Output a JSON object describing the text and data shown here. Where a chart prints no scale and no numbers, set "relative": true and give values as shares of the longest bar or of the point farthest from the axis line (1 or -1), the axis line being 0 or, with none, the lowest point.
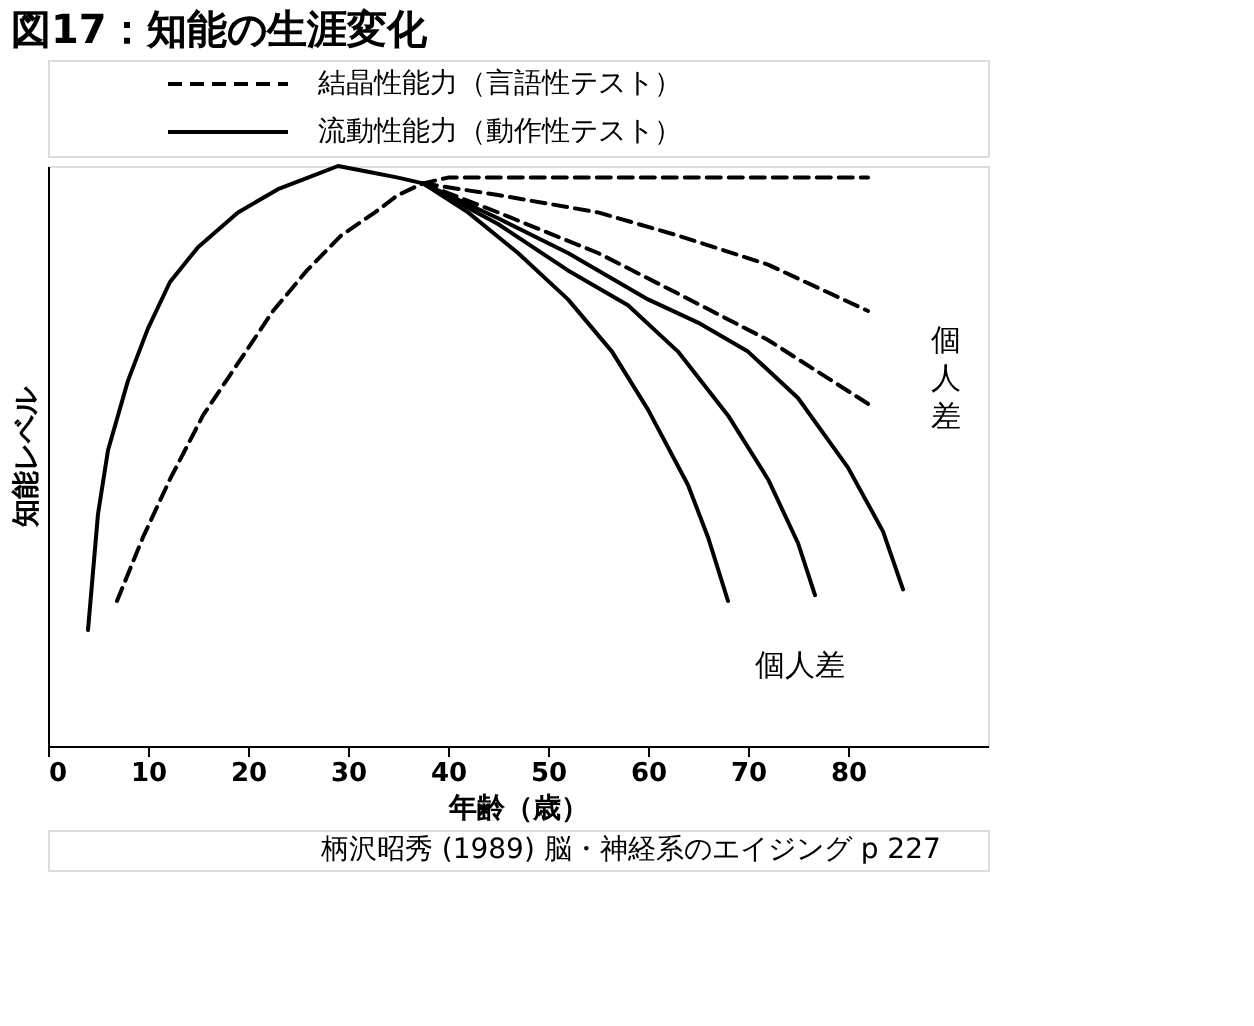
{
  "chart_data": {
    "type": "line",
    "title": "図17：知能の生涯変化",
    "xlabel": "年齢（歳）",
    "ylabel": "知能レベル",
    "relative": true,
    "xlim": [
      0,
      94
    ],
    "xticks": [
      0,
      10,
      20,
      30,
      40,
      50,
      60,
      70,
      80
    ],
    "tick_labels": "x",
    "grid": false,
    "legend": "top",
    "series": [
      {
        "name": "結晶性能力（言語性テスト）",
        "color": "#000000",
        "line_style": "dashed",
        "x": [
          6.9,
          9.5,
          12.2,
          15.5,
          19,
          22.5,
          25.9,
          29.3,
          32.7,
          35,
          37.5,
          40,
          50,
          60,
          70,
          82
        ],
        "values": [
          0.25,
          0.36,
          0.46,
          0.57,
          0.66,
          0.75,
          0.82,
          0.88,
          0.92,
          0.95,
          0.97,
          0.98,
          0.98,
          0.98,
          0.98,
          0.98
        ]
      },
      {
        "color": "#000000",
        "line_style": "dashed",
        "x": [
          37.5,
          45,
          55,
          63,
          72,
          82
        ],
        "values": [
          0.97,
          0.95,
          0.92,
          0.88,
          0.83,
          0.75
        ]
      },
      {
        "color": "#000000",
        "line_style": "dashed",
        "x": [
          37.5,
          45,
          55,
          63,
          72,
          82
        ],
        "values": [
          0.97,
          0.92,
          0.85,
          0.78,
          0.7,
          0.59
        ]
      },
      {
        "name": "流動性能力（動作性テスト）",
        "color": "#000000",
        "line_style": "solid",
        "x": [
          4,
          4.5,
          5,
          6,
          8,
          10,
          12.2,
          15,
          19,
          23,
          26,
          29,
          32,
          35,
          37.5,
          42,
          47,
          52,
          56.4,
          60,
          64,
          66,
          68
        ],
        "values": [
          0.2,
          0.3,
          0.4,
          0.51,
          0.63,
          0.72,
          0.8,
          0.86,
          0.92,
          0.96,
          0.98,
          1.0,
          0.99,
          0.98,
          0.97,
          0.92,
          0.85,
          0.77,
          0.68,
          0.58,
          0.45,
          0.36,
          0.25
        ]
      },
      {
        "color": "#000000",
        "line_style": "solid",
        "x": [
          37.5,
          45,
          52,
          58,
          63,
          68,
          72,
          75,
          76.7
        ],
        "values": [
          0.97,
          0.9,
          0.82,
          0.76,
          0.68,
          0.57,
          0.46,
          0.35,
          0.26
        ]
      },
      {
        "color": "#000000",
        "line_style": "solid",
        "x": [
          37.5,
          45,
          52,
          60,
          65,
          70,
          75,
          80,
          83.5,
          85.5
        ],
        "values": [
          0.97,
          0.91,
          0.85,
          0.77,
          0.73,
          0.68,
          0.6,
          0.48,
          0.37,
          0.27
        ]
      }
    ],
    "annotations": [
      "個人差",
      "個人差",
      "柄沢昭秀 (1989) 脳・神経系のエイジング p 227"
    ]
  }
}
